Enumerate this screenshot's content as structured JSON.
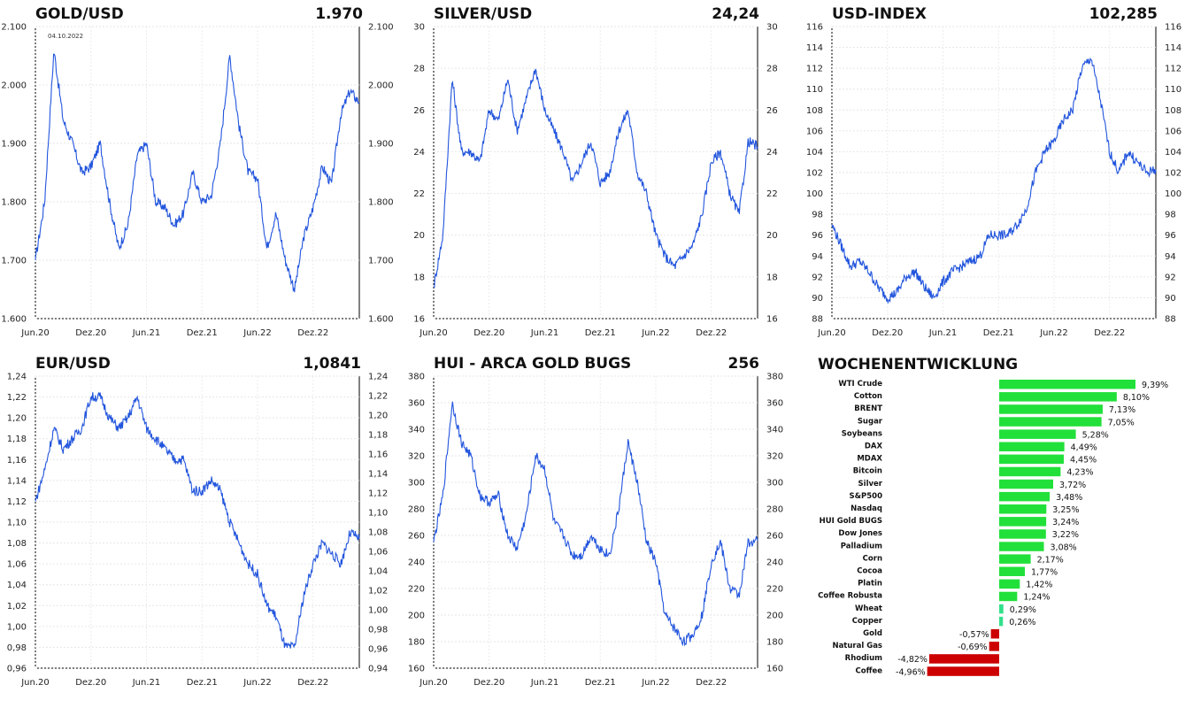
{
  "chart_data": [
    {
      "id": "gold",
      "type": "line",
      "title": "GOLD/USD",
      "last_value": "1.970",
      "x_ticks": [
        "Jun.20",
        "Dez.20",
        "Jun.21",
        "Dez.21",
        "Jun.22",
        "Dez.22"
      ],
      "ylim": [
        1600,
        2100
      ],
      "y_ticks": [
        "1.600",
        "1.700",
        "1.800",
        "1.900",
        "2.000",
        "2.100"
      ],
      "annotation": "04.10.2022",
      "color": "#2255dd",
      "series": [
        {
          "x": [
            "2020-06",
            "2020-07",
            "2020-08",
            "2020-09",
            "2020-10",
            "2020-11",
            "2020-12",
            "2021-01",
            "2021-02",
            "2021-03",
            "2021-04",
            "2021-05",
            "2021-06",
            "2021-07",
            "2021-08",
            "2021-09",
            "2021-10",
            "2021-11",
            "2021-12",
            "2022-01",
            "2022-02",
            "2022-03",
            "2022-04",
            "2022-05",
            "2022-06",
            "2022-07",
            "2022-08",
            "2022-09",
            "2022-10",
            "2022-11",
            "2022-12",
            "2023-01",
            "2023-02",
            "2023-03",
            "2023-04",
            "2023-05"
          ],
          "values": [
            1700,
            1800,
            2060,
            1940,
            1900,
            1850,
            1860,
            1900,
            1800,
            1720,
            1760,
            1880,
            1900,
            1800,
            1790,
            1760,
            1780,
            1850,
            1800,
            1810,
            1900,
            2050,
            1930,
            1850,
            1840,
            1720,
            1780,
            1700,
            1650,
            1740,
            1790,
            1860,
            1830,
            1950,
            1990,
            1970
          ]
        }
      ]
    },
    {
      "id": "silver",
      "type": "line",
      "title": "SILVER/USD",
      "last_value": "24,24",
      "x_ticks": [
        "Jun.20",
        "Dez.20",
        "Jun.21",
        "Dez.21",
        "Jun.22",
        "Dez.22"
      ],
      "ylim": [
        16,
        30
      ],
      "y_ticks": [
        "16",
        "18",
        "20",
        "22",
        "24",
        "26",
        "28",
        "30"
      ],
      "color": "#2255dd",
      "series": [
        {
          "x": [
            "2020-06",
            "2020-07",
            "2020-08",
            "2020-09",
            "2020-10",
            "2020-11",
            "2020-12",
            "2021-01",
            "2021-02",
            "2021-03",
            "2021-04",
            "2021-05",
            "2021-06",
            "2021-07",
            "2021-08",
            "2021-09",
            "2021-10",
            "2021-11",
            "2021-12",
            "2022-01",
            "2022-02",
            "2022-03",
            "2022-04",
            "2022-05",
            "2022-06",
            "2022-07",
            "2022-08",
            "2022-09",
            "2022-10",
            "2022-11",
            "2022-12",
            "2023-01",
            "2023-02",
            "2023-03",
            "2023-04",
            "2023-05"
          ],
          "values": [
            17.5,
            20,
            27.5,
            24,
            24,
            23.5,
            26,
            25.5,
            27.5,
            25,
            26.5,
            28,
            26,
            25,
            24,
            22.5,
            23.5,
            24.5,
            22.5,
            23,
            25,
            26,
            23,
            22,
            20,
            19,
            18.5,
            19,
            19.5,
            21,
            23.5,
            24,
            22,
            21,
            24.5,
            24.24
          ]
        }
      ]
    },
    {
      "id": "usdindex",
      "type": "line",
      "title": "USD-INDEX",
      "last_value": "102,285",
      "x_ticks": [
        "Jun.20",
        "Dez.20",
        "Jun.21",
        "Dez.21",
        "Jun.22",
        "Dez.22"
      ],
      "ylim": [
        88,
        116
      ],
      "y_ticks": [
        "88",
        "90",
        "92",
        "94",
        "96",
        "98",
        "100",
        "102",
        "104",
        "106",
        "108",
        "110",
        "112",
        "114",
        "116"
      ],
      "color": "#2255dd",
      "series": [
        {
          "x": [
            "2020-06",
            "2020-07",
            "2020-08",
            "2020-09",
            "2020-10",
            "2020-11",
            "2020-12",
            "2021-01",
            "2021-02",
            "2021-03",
            "2021-04",
            "2021-05",
            "2021-06",
            "2021-07",
            "2021-08",
            "2021-09",
            "2021-10",
            "2021-11",
            "2021-12",
            "2022-01",
            "2022-02",
            "2022-03",
            "2022-04",
            "2022-05",
            "2022-06",
            "2022-07",
            "2022-08",
            "2022-09",
            "2022-10",
            "2022-11",
            "2022-12",
            "2023-01",
            "2023-02",
            "2023-03",
            "2023-04",
            "2023-05"
          ],
          "values": [
            97,
            95,
            93,
            93.5,
            92.5,
            91,
            90,
            90.5,
            92,
            92.5,
            91,
            90,
            91.5,
            92.5,
            93,
            93.5,
            94,
            96,
            96,
            96,
            97,
            98.5,
            102,
            104,
            105,
            107,
            108,
            112,
            113,
            109,
            104,
            102,
            104,
            103,
            102,
            102.285
          ]
        }
      ]
    },
    {
      "id": "eurusd",
      "type": "line",
      "title": "EUR/USD",
      "last_value": "1,0841",
      "x_ticks": [
        "Jun.20",
        "Dez.20",
        "Jun.21",
        "Dez.21",
        "Jun.22",
        "Dez.22"
      ],
      "ylim": [
        0.96,
        1.24
      ],
      "y_ticks": [
        "0,96",
        "0,98",
        "1,00",
        "1,02",
        "1,04",
        "1,06",
        "1,08",
        "1,10",
        "1,12",
        "1,14",
        "1,16",
        "1,18",
        "1,20",
        "1,22",
        "1,24"
      ],
      "right_y_ticks": [
        "0,94",
        "0,96",
        "0,98",
        "1,00",
        "1,02",
        "1,04",
        "1,06",
        "1,08",
        "1,10",
        "1,12",
        "1,14",
        "1,16",
        "1,18",
        "1,20",
        "1,22",
        "1,24"
      ],
      "color": "#2255dd",
      "series": [
        {
          "x": [
            "2020-06",
            "2020-07",
            "2020-08",
            "2020-09",
            "2020-10",
            "2020-11",
            "2020-12",
            "2021-01",
            "2021-02",
            "2021-03",
            "2021-04",
            "2021-05",
            "2021-06",
            "2021-07",
            "2021-08",
            "2021-09",
            "2021-10",
            "2021-11",
            "2021-12",
            "2022-01",
            "2022-02",
            "2022-03",
            "2022-04",
            "2022-05",
            "2022-06",
            "2022-07",
            "2022-08",
            "2022-09",
            "2022-10",
            "2022-11",
            "2022-12",
            "2023-01",
            "2023-02",
            "2023-03",
            "2023-04",
            "2023-05"
          ],
          "values": [
            1.12,
            1.15,
            1.19,
            1.17,
            1.18,
            1.19,
            1.22,
            1.22,
            1.2,
            1.19,
            1.2,
            1.22,
            1.19,
            1.18,
            1.17,
            1.16,
            1.16,
            1.13,
            1.13,
            1.14,
            1.13,
            1.1,
            1.08,
            1.06,
            1.05,
            1.02,
            1.01,
            0.98,
            0.98,
            1.03,
            1.06,
            1.08,
            1.07,
            1.06,
            1.09,
            1.0841
          ]
        }
      ]
    },
    {
      "id": "hui",
      "type": "line",
      "title": "HUI - ARCA GOLD BUGS",
      "last_value": "256",
      "x_ticks": [
        "Jun.20",
        "Dez.20",
        "Jun.21",
        "Dez.21",
        "Jun.22",
        "Dez.22"
      ],
      "ylim": [
        160,
        380
      ],
      "y_ticks": [
        "160",
        "180",
        "200",
        "220",
        "240",
        "260",
        "280",
        "300",
        "320",
        "340",
        "360",
        "380"
      ],
      "color": "#2255dd",
      "series": [
        {
          "x": [
            "2020-06",
            "2020-07",
            "2020-08",
            "2020-09",
            "2020-10",
            "2020-11",
            "2020-12",
            "2021-01",
            "2021-02",
            "2021-03",
            "2021-04",
            "2021-05",
            "2021-06",
            "2021-07",
            "2021-08",
            "2021-09",
            "2021-10",
            "2021-11",
            "2021-12",
            "2022-01",
            "2022-02",
            "2022-03",
            "2022-04",
            "2022-05",
            "2022-06",
            "2022-07",
            "2022-08",
            "2022-09",
            "2022-10",
            "2022-11",
            "2022-12",
            "2023-01",
            "2023-02",
            "2023-03",
            "2023-04",
            "2023-05"
          ],
          "values": [
            255,
            290,
            360,
            330,
            320,
            290,
            285,
            290,
            260,
            250,
            275,
            320,
            310,
            270,
            260,
            245,
            245,
            260,
            250,
            245,
            280,
            330,
            300,
            255,
            240,
            200,
            190,
            180,
            185,
            200,
            240,
            255,
            220,
            215,
            255,
            256
          ]
        }
      ]
    },
    {
      "id": "weekly",
      "type": "bar",
      "title": "WOCHENENTWICKLUNG",
      "categories": [
        "WTI Crude",
        "Cotton",
        "BRENT",
        "Sugar",
        "Soybeans",
        "DAX",
        "MDAX",
        "Bitcoin",
        "Silver",
        "S&P500",
        "Nasdaq",
        "HUI Gold BUGS",
        "Dow Jones",
        "Palladium",
        "Corn",
        "Cocoa",
        "Platin",
        "Coffee Robusta",
        "Wheat",
        "Copper",
        "Gold",
        "Natural Gas",
        "Rhodium",
        "Coffee"
      ],
      "values": [
        9.39,
        8.1,
        7.13,
        7.05,
        5.28,
        4.49,
        4.45,
        4.23,
        3.72,
        3.48,
        3.25,
        3.24,
        3.22,
        3.08,
        2.17,
        1.77,
        1.42,
        1.24,
        0.29,
        0.26,
        -0.57,
        -0.69,
        -4.82,
        -4.96
      ],
      "labels": [
        "9,39%",
        "8,10%",
        "7,13%",
        "7,05%",
        "5,28%",
        "4,49%",
        "4,45%",
        "4,23%",
        "3,72%",
        "3,48%",
        "3,25%",
        "3,24%",
        "3,22%",
        "3,08%",
        "2,17%",
        "1,77%",
        "1,42%",
        "1,24%",
        "0,29%",
        "0,26%",
        "-0,57%",
        "-0,69%",
        "-4,82%",
        "-4,96%"
      ],
      "colors": {
        "positive": "#22e03a",
        "small_positive": "#33e08a",
        "negative": "#cc0000"
      }
    }
  ]
}
